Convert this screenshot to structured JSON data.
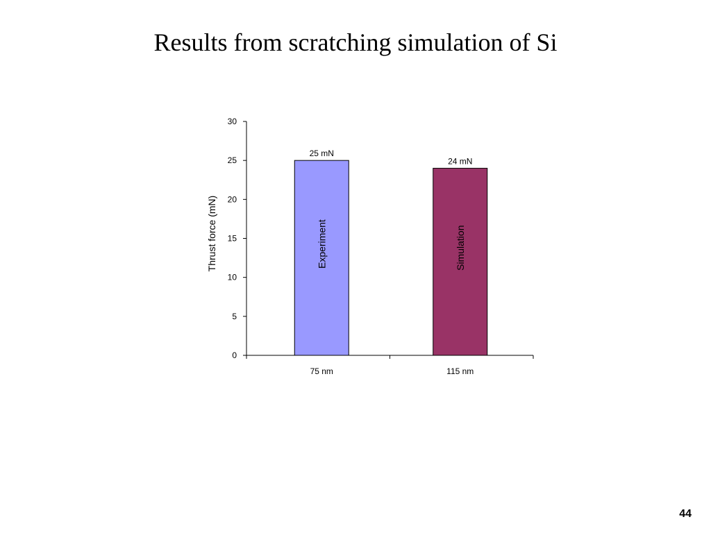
{
  "slide": {
    "title": "Results from scratching simulation of Si",
    "page_number": "44"
  },
  "chart_data": {
    "type": "bar",
    "categories": [
      "75 nm",
      "115 nm"
    ],
    "values": [
      25,
      24
    ],
    "bar_labels": [
      "Experiment",
      "Simulation"
    ],
    "data_labels": [
      "25 mN",
      "24 mN"
    ],
    "bar_colors": [
      "#9999ff",
      "#993366"
    ],
    "ylabel": "Thrust force (mN)",
    "xlabel": "",
    "ylim": [
      0,
      30
    ],
    "yticks": [
      0,
      5,
      10,
      15,
      20,
      25,
      30
    ],
    "grid": false,
    "legend": "none"
  }
}
